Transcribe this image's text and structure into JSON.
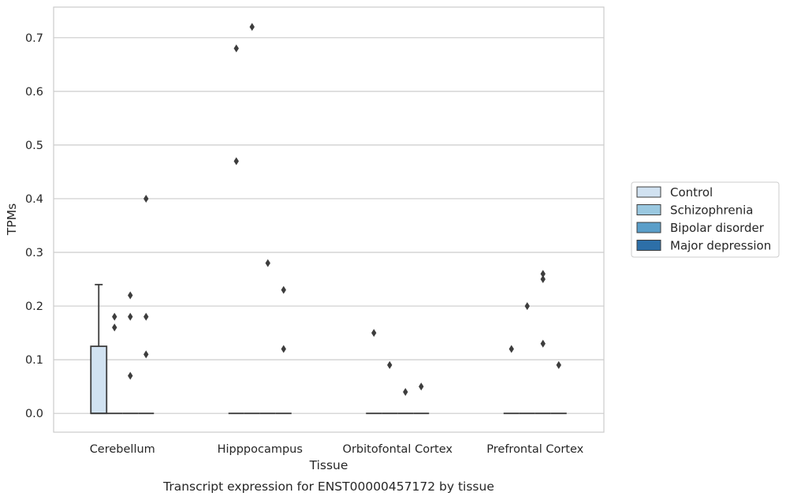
{
  "chart_data": {
    "type": "box",
    "title": "Transcript expression for ENST00000457172 by tissue",
    "xlabel": "Tissue",
    "ylabel": "TPMs",
    "ylim": [
      -0.035,
      0.757
    ],
    "yticks": [
      0.0,
      0.1,
      0.2,
      0.3,
      0.4,
      0.5,
      0.6,
      0.7
    ],
    "ytick_labels": [
      "0.0",
      "0.1",
      "0.2",
      "0.3",
      "0.4",
      "0.5",
      "0.6",
      "0.7"
    ],
    "grid": "horizontal",
    "legend_placement": "outside-right",
    "categories": [
      "Cerebellum",
      "Hipppocampus",
      "Orbitofontal Cortex",
      "Prefrontal Cortex"
    ],
    "series": [
      {
        "name": "Control",
        "color": "#d1e2f1",
        "boxes": [
          {
            "category": "Cerebellum",
            "min": 0.0,
            "q1": 0.0,
            "median": 0.0,
            "q3": 0.125,
            "max": 0.24,
            "outliers": []
          },
          {
            "category": "Hipppocampus",
            "min": 0.0,
            "q1": 0.0,
            "median": 0.0,
            "q3": 0.0,
            "max": 0.0,
            "outliers": [
              0.47,
              0.68
            ]
          },
          {
            "category": "Orbitofontal Cortex",
            "min": 0.0,
            "q1": 0.0,
            "median": 0.0,
            "q3": 0.0,
            "max": 0.0,
            "outliers": [
              0.15
            ]
          },
          {
            "category": "Prefrontal Cortex",
            "min": 0.0,
            "q1": 0.0,
            "median": 0.0,
            "q3": 0.0,
            "max": 0.0,
            "outliers": [
              0.12
            ]
          }
        ]
      },
      {
        "name": "Schizophrenia",
        "color": "#9ac8e0",
        "boxes": [
          {
            "category": "Cerebellum",
            "min": 0.0,
            "q1": 0.0,
            "median": 0.0,
            "q3": 0.0,
            "max": 0.0,
            "outliers": [
              0.16,
              0.18
            ]
          },
          {
            "category": "Hipppocampus",
            "min": 0.0,
            "q1": 0.0,
            "median": 0.0,
            "q3": 0.0,
            "max": 0.0,
            "outliers": [
              0.72
            ]
          },
          {
            "category": "Orbitofontal Cortex",
            "min": 0.0,
            "q1": 0.0,
            "median": 0.0,
            "q3": 0.0,
            "max": 0.0,
            "outliers": [
              0.09
            ]
          },
          {
            "category": "Prefrontal Cortex",
            "min": 0.0,
            "q1": 0.0,
            "median": 0.0,
            "q3": 0.0,
            "max": 0.0,
            "outliers": [
              0.2
            ]
          }
        ]
      },
      {
        "name": "Bipolar disorder",
        "color": "#5a9ec9",
        "boxes": [
          {
            "category": "Cerebellum",
            "min": 0.0,
            "q1": 0.0,
            "median": 0.0,
            "q3": 0.0,
            "max": 0.0,
            "outliers": [
              0.07,
              0.18,
              0.22
            ]
          },
          {
            "category": "Hipppocampus",
            "min": 0.0,
            "q1": 0.0,
            "median": 0.0,
            "q3": 0.0,
            "max": 0.0,
            "outliers": [
              0.28
            ]
          },
          {
            "category": "Orbitofontal Cortex",
            "min": 0.0,
            "q1": 0.0,
            "median": 0.0,
            "q3": 0.0,
            "max": 0.0,
            "outliers": [
              0.04
            ]
          },
          {
            "category": "Prefrontal Cortex",
            "min": 0.0,
            "q1": 0.0,
            "median": 0.0,
            "q3": 0.0,
            "max": 0.0,
            "outliers": [
              0.13,
              0.25,
              0.26
            ]
          }
        ]
      },
      {
        "name": "Major depression",
        "color": "#2d6fa8",
        "boxes": [
          {
            "category": "Cerebellum",
            "min": 0.0,
            "q1": 0.0,
            "median": 0.0,
            "q3": 0.0,
            "max": 0.0,
            "outliers": [
              0.11,
              0.18,
              0.4
            ]
          },
          {
            "category": "Hipppocampus",
            "min": 0.0,
            "q1": 0.0,
            "median": 0.0,
            "q3": 0.0,
            "max": 0.0,
            "outliers": [
              0.12,
              0.23
            ]
          },
          {
            "category": "Orbitofontal Cortex",
            "min": 0.0,
            "q1": 0.0,
            "median": 0.0,
            "q3": 0.0,
            "max": 0.0,
            "outliers": [
              0.05
            ]
          },
          {
            "category": "Prefrontal Cortex",
            "min": 0.0,
            "q1": 0.0,
            "median": 0.0,
            "q3": 0.0,
            "max": 0.0,
            "outliers": [
              0.09
            ]
          }
        ]
      }
    ]
  }
}
